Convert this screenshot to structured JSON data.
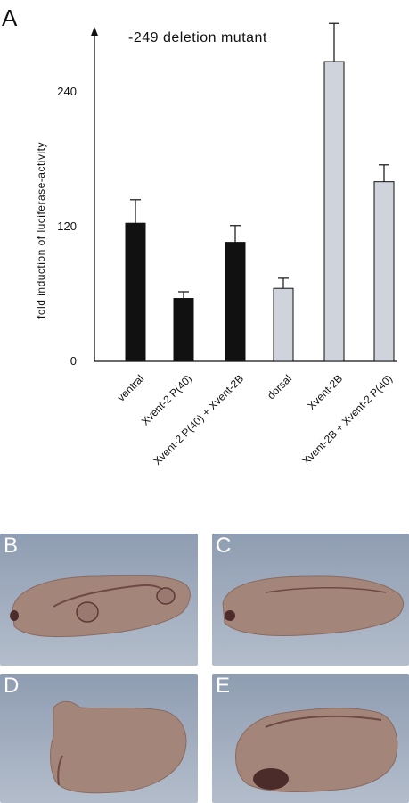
{
  "panel_labels": {
    "a": "A",
    "b": "B",
    "c": "C",
    "d": "D",
    "e": "E"
  },
  "colors": {
    "bar_dark": "#111111",
    "bar_light": "#cfd3dc",
    "photo_bg_top": "#8f9db2",
    "photo_bg_bottom": "#b3bdcb",
    "embryo_fill": "#a3857a",
    "embryo_dark": "#4b2c2b"
  },
  "chart_data": {
    "type": "bar",
    "title": "-249 deletion mutant",
    "xlabel": "",
    "ylabel": "fold induction of luciferase-activity",
    "ylim": [
      0,
      290
    ],
    "yticks": [
      0,
      120,
      240
    ],
    "grid": false,
    "legend": "none",
    "categories": [
      "ventral",
      "Xvent-2 P(40)",
      "Xvent-2 P(40) + Xvent-2B",
      "dorsal",
      "Xvent-2B",
      "Xvent-2B + Xvent-2 P(40)"
    ],
    "values": [
      123,
      56,
      106,
      65,
      267,
      160
    ],
    "errors": [
      21,
      6,
      15,
      9,
      34,
      15
    ],
    "bar_groups": [
      "dark",
      "dark",
      "dark",
      "light",
      "light",
      "light"
    ]
  },
  "images": [
    {
      "label": "B",
      "description_icon": "embryo-with-cement-gland-icon"
    },
    {
      "label": "C",
      "description_icon": "embryo-elongated-icon"
    },
    {
      "label": "D",
      "description_icon": "embryo-bent-icon"
    },
    {
      "label": "E",
      "description_icon": "embryo-bent-pigmented-icon"
    }
  ]
}
